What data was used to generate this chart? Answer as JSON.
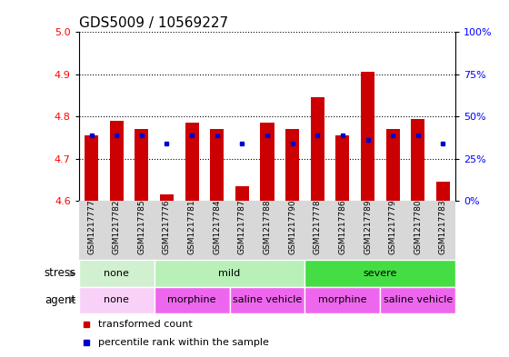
{
  "title": "GDS5009 / 10569227",
  "samples": [
    "GSM1217777",
    "GSM1217782",
    "GSM1217785",
    "GSM1217776",
    "GSM1217781",
    "GSM1217784",
    "GSM1217787",
    "GSM1217788",
    "GSM1217790",
    "GSM1217778",
    "GSM1217786",
    "GSM1217789",
    "GSM1217779",
    "GSM1217780",
    "GSM1217783"
  ],
  "red_values": [
    4.755,
    4.79,
    4.77,
    4.615,
    4.785,
    4.77,
    4.635,
    4.785,
    4.77,
    4.845,
    4.755,
    4.905,
    4.77,
    4.795,
    4.645
  ],
  "blue_values": [
    4.755,
    4.755,
    4.755,
    4.735,
    4.755,
    4.755,
    4.735,
    4.755,
    4.735,
    4.755,
    4.755,
    4.745,
    4.755,
    4.755,
    4.735
  ],
  "ylim": [
    4.6,
    5.0
  ],
  "yticks_left": [
    4.6,
    4.7,
    4.8,
    4.9,
    5.0
  ],
  "yticks_right": [
    0,
    25,
    50,
    75,
    100
  ],
  "ytick_labels_right": [
    "0%",
    "25%",
    "50%",
    "75%",
    "100%"
  ],
  "bar_bottom": 4.6,
  "stress_groups": [
    {
      "label": "none",
      "start": 0,
      "end": 3,
      "color": "#d0f0d0"
    },
    {
      "label": "mild",
      "start": 3,
      "end": 9,
      "color": "#b8f0b8"
    },
    {
      "label": "severe",
      "start": 9,
      "end": 15,
      "color": "#44dd44"
    }
  ],
  "agent_groups": [
    {
      "label": "none",
      "start": 0,
      "end": 3,
      "color": "#f8d0f8"
    },
    {
      "label": "morphine",
      "start": 3,
      "end": 6,
      "color": "#ee66ee"
    },
    {
      "label": "saline vehicle",
      "start": 6,
      "end": 9,
      "color": "#ee66ee"
    },
    {
      "label": "morphine",
      "start": 9,
      "end": 12,
      "color": "#ee66ee"
    },
    {
      "label": "saline vehicle",
      "start": 12,
      "end": 15,
      "color": "#ee66ee"
    }
  ],
  "red_color": "#cc0000",
  "blue_color": "#0000cc",
  "plot_bg": "#ffffff",
  "xtick_bg": "#d8d8d8",
  "title_fontsize": 11,
  "tick_fontsize": 8,
  "bar_width": 0.55
}
